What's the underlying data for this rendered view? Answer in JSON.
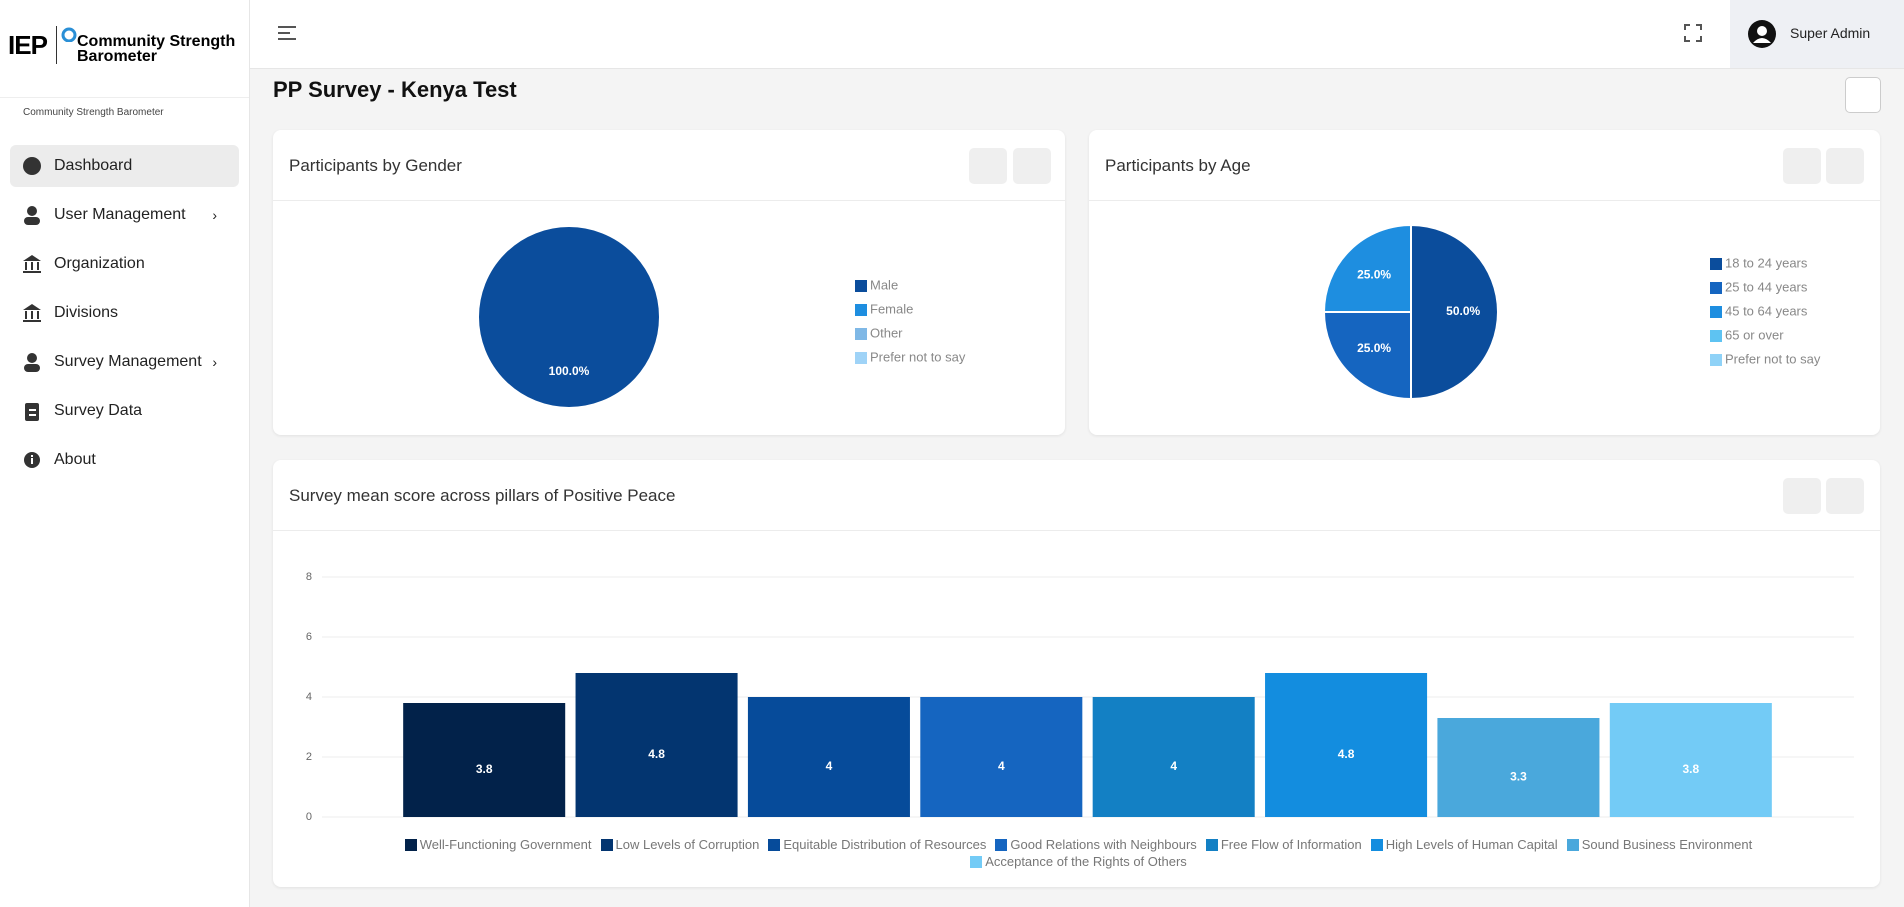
{
  "sidebar": {
    "logo": "IEP",
    "brand": "Community Strength Barometer",
    "subtitle": "Community Strength Barometer",
    "menu": [
      "Dashboard",
      "User Management",
      "Organization",
      "Divisions",
      "Survey Management",
      "Survey Data",
      "About"
    ]
  },
  "header": {
    "user": "Super Admin"
  },
  "page_title": "PP Survey - Kenya Test",
  "chart_data": [
    {
      "type": "pie",
      "title": "Participants by Gender",
      "categories": [
        "Male",
        "Female",
        "Other",
        "Prefer not to say"
      ],
      "values": [
        100,
        0,
        0,
        0
      ],
      "value_labels": [
        "100.0%",
        null,
        null,
        null
      ],
      "colors": [
        "#0b4d9c",
        "#1e8ee0",
        "#7fb8e6",
        "#9fd3f7"
      ]
    },
    {
      "type": "pie",
      "title": "Participants by Age",
      "categories": [
        "18 to 24 years",
        "25 to 44 years",
        "45 to 64 years",
        "65 or over",
        "Prefer not to say"
      ],
      "values": [
        50,
        25,
        25,
        0,
        0
      ],
      "value_labels": [
        "50.0%",
        "25.0%",
        "25.0%",
        null,
        null
      ],
      "colors": [
        "#0b4d9c",
        "#1565c0",
        "#1e8ee0",
        "#5ec3f2",
        "#8fd2f7"
      ]
    },
    {
      "type": "bar",
      "title": "Survey mean score across pillars of Positive Peace",
      "categories": [
        "Well-Functioning Government",
        "Low Levels of Corruption",
        "Equitable Distribution of Resources",
        "Good Relations with Neighbours",
        "Free Flow of Information",
        "High Levels of Human Capital",
        "Sound Business Environment",
        "Acceptance of the Rights of Others"
      ],
      "values": [
        3.8,
        4.8,
        4,
        4,
        4,
        4.8,
        3.3,
        3.8
      ],
      "colors": [
        "#02224a",
        "#033570",
        "#064b9a",
        "#1565c0",
        "#1380c4",
        "#138ddf",
        "#4aa8dc",
        "#73cbf6"
      ],
      "ylim": [
        0,
        8
      ],
      "yticks": [
        0,
        2,
        4,
        6,
        8
      ],
      "grid": true
    }
  ]
}
